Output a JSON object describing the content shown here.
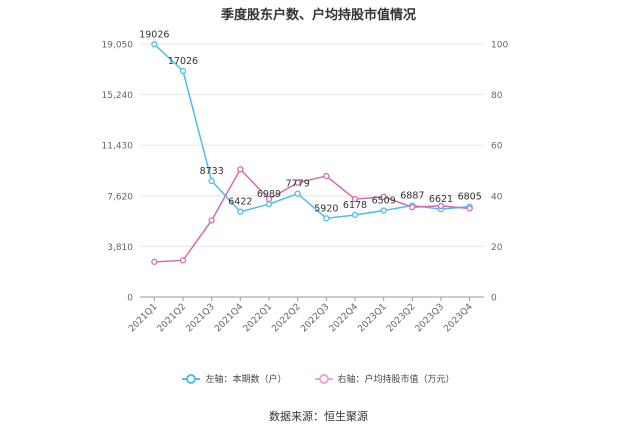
{
  "chart_data": {
    "type": "line",
    "title": "季度股东户数、户均持股市值情况",
    "categories": [
      "2021Q1",
      "2021Q2",
      "2021Q3",
      "2021Q4",
      "2022Q1",
      "2022Q2",
      "2022Q3",
      "2022Q4",
      "2023Q1",
      "2023Q2",
      "2023Q3",
      "2023Q4"
    ],
    "left_axis": {
      "ticks": [
        "0",
        "3,810",
        "7,620",
        "11,430",
        "15,240",
        "19,050"
      ],
      "tick_values": [
        0,
        3810,
        7620,
        11430,
        15240,
        19050
      ],
      "ylim": [
        0,
        19050
      ]
    },
    "right_axis": {
      "ticks": [
        "0",
        "20",
        "40",
        "60",
        "80",
        "100"
      ],
      "tick_values": [
        0,
        20,
        40,
        60,
        80,
        100
      ],
      "ylim": [
        0,
        100
      ]
    },
    "series": [
      {
        "name": "左轴：本期数（户）",
        "axis": "left",
        "color": "#4dbde9",
        "values": [
          19026,
          17026,
          8733,
          6422,
          6989,
          7779,
          5920,
          6178,
          6509,
          6887,
          6621,
          6805
        ],
        "labels": [
          "19026",
          "17026",
          "8733",
          "6422",
          "6989",
          "7779",
          "5920",
          "6178",
          "6509",
          "6887",
          "6621",
          "6805"
        ]
      },
      {
        "name": "右轴：户均持股市值（万元）",
        "axis": "right",
        "color": "#d46cb4",
        "values": [
          13.9,
          14.5,
          30.3,
          50.5,
          38.7,
          45.2,
          47.8,
          38.7,
          39.6,
          35.5,
          36.0,
          35.0
        ]
      }
    ],
    "grid": true,
    "legend_position": "bottom"
  },
  "source": "数据来源：恒生聚源"
}
